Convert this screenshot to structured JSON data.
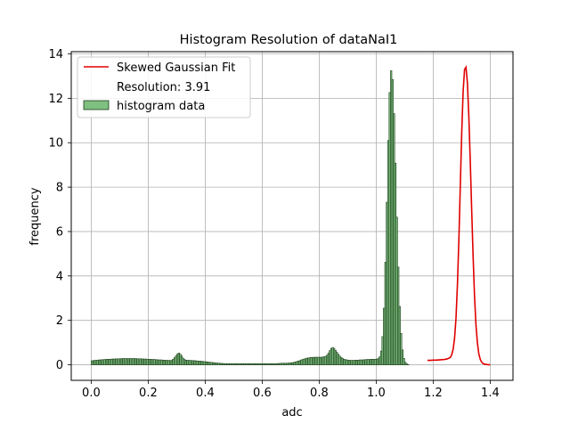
{
  "chart_data": {
    "type": "bar",
    "title": "Histogram Resolution of dataNaI1",
    "xlabel": "adc",
    "ylabel": "frequency",
    "xlim": [
      -0.07,
      1.48
    ],
    "ylim": [
      -0.7,
      14.1
    ],
    "xticks": [
      "0.0",
      "0.2",
      "0.4",
      "0.6",
      "0.8",
      "1.0",
      "1.2",
      "1.4"
    ],
    "yticks": [
      "0",
      "2",
      "4",
      "6",
      "8",
      "10",
      "12",
      "14"
    ],
    "grid": true,
    "legend_position": "top-left",
    "legend": {
      "fit_label": "Skewed Gaussian Fit",
      "resolution_label": "Resolution: 3.91",
      "hist_label": "histogram data"
    },
    "colors": {
      "bar_fill": "#7fbf7f",
      "bar_edge": "#1a3d1a",
      "fit_line": "#e00000",
      "grid": "#b0b0b0"
    },
    "series": [
      {
        "name": "histogram data",
        "bin_width": 0.005,
        "x_start": 0.0,
        "values": [
          0.18,
          0.19,
          0.2,
          0.2,
          0.21,
          0.22,
          0.22,
          0.23,
          0.23,
          0.24,
          0.24,
          0.25,
          0.25,
          0.25,
          0.26,
          0.26,
          0.26,
          0.27,
          0.27,
          0.27,
          0.27,
          0.28,
          0.28,
          0.28,
          0.28,
          0.28,
          0.28,
          0.28,
          0.28,
          0.28,
          0.28,
          0.28,
          0.27,
          0.27,
          0.27,
          0.27,
          0.26,
          0.26,
          0.26,
          0.25,
          0.25,
          0.25,
          0.24,
          0.24,
          0.24,
          0.23,
          0.23,
          0.22,
          0.22,
          0.22,
          0.21,
          0.21,
          0.2,
          0.2,
          0.2,
          0.19,
          0.2,
          0.25,
          0.32,
          0.4,
          0.48,
          0.53,
          0.48,
          0.4,
          0.3,
          0.24,
          0.21,
          0.2,
          0.2,
          0.2,
          0.19,
          0.19,
          0.19,
          0.18,
          0.17,
          0.17,
          0.16,
          0.16,
          0.15,
          0.14,
          0.14,
          0.13,
          0.12,
          0.11,
          0.11,
          0.1,
          0.09,
          0.08,
          0.08,
          0.07,
          0.07,
          0.06,
          0.06,
          0.05,
          0.05,
          0.05,
          0.05,
          0.05,
          0.05,
          0.05,
          0.05,
          0.05,
          0.05,
          0.05,
          0.05,
          0.05,
          0.05,
          0.05,
          0.05,
          0.05,
          0.05,
          0.05,
          0.05,
          0.05,
          0.05,
          0.05,
          0.05,
          0.05,
          0.05,
          0.05,
          0.05,
          0.05,
          0.05,
          0.05,
          0.05,
          0.05,
          0.05,
          0.05,
          0.05,
          0.05,
          0.05,
          0.06,
          0.06,
          0.07,
          0.07,
          0.07,
          0.07,
          0.07,
          0.08,
          0.08,
          0.09,
          0.1,
          0.11,
          0.13,
          0.15,
          0.17,
          0.19,
          0.22,
          0.24,
          0.26,
          0.28,
          0.3,
          0.31,
          0.32,
          0.33,
          0.33,
          0.34,
          0.34,
          0.34,
          0.34,
          0.34,
          0.34,
          0.35,
          0.36,
          0.38,
          0.43,
          0.52,
          0.64,
          0.74,
          0.78,
          0.74,
          0.65,
          0.56,
          0.47,
          0.39,
          0.33,
          0.28,
          0.25,
          0.23,
          0.22,
          0.21,
          0.2,
          0.2,
          0.2,
          0.2,
          0.21,
          0.21,
          0.21,
          0.22,
          0.22,
          0.22,
          0.23,
          0.23,
          0.24,
          0.24,
          0.24,
          0.25,
          0.25,
          0.25,
          0.25,
          0.26,
          0.28,
          0.36,
          0.62,
          1.27,
          2.55,
          4.62,
          7.32,
          10.1,
          12.26,
          13.24,
          12.85,
          11.31,
          9.08,
          6.65,
          4.4,
          2.63,
          1.41,
          0.67,
          0.29,
          0.11,
          0.04,
          0.01,
          0.0,
          0.0,
          0.0
        ]
      },
      {
        "name": "Skewed Gaussian Fit",
        "x": [
          1.18,
          1.19,
          1.2,
          1.21,
          1.22,
          1.23,
          1.24,
          1.25,
          1.26,
          1.265,
          1.27,
          1.275,
          1.28,
          1.285,
          1.29,
          1.295,
          1.3,
          1.305,
          1.31,
          1.315,
          1.32,
          1.325,
          1.33,
          1.335,
          1.34,
          1.345,
          1.35,
          1.355,
          1.36,
          1.365,
          1.37,
          1.375,
          1.38,
          1.39,
          1.4
        ],
        "y": [
          0.2,
          0.2,
          0.21,
          0.21,
          0.22,
          0.23,
          0.24,
          0.27,
          0.33,
          0.45,
          0.7,
          1.2,
          2.1,
          3.6,
          5.6,
          8.0,
          10.4,
          12.3,
          13.3,
          13.4,
          12.7,
          11.2,
          9.2,
          7.0,
          4.9,
          3.1,
          1.8,
          1.0,
          0.5,
          0.25,
          0.12,
          0.06,
          0.03,
          0.01,
          0.0
        ]
      }
    ]
  }
}
